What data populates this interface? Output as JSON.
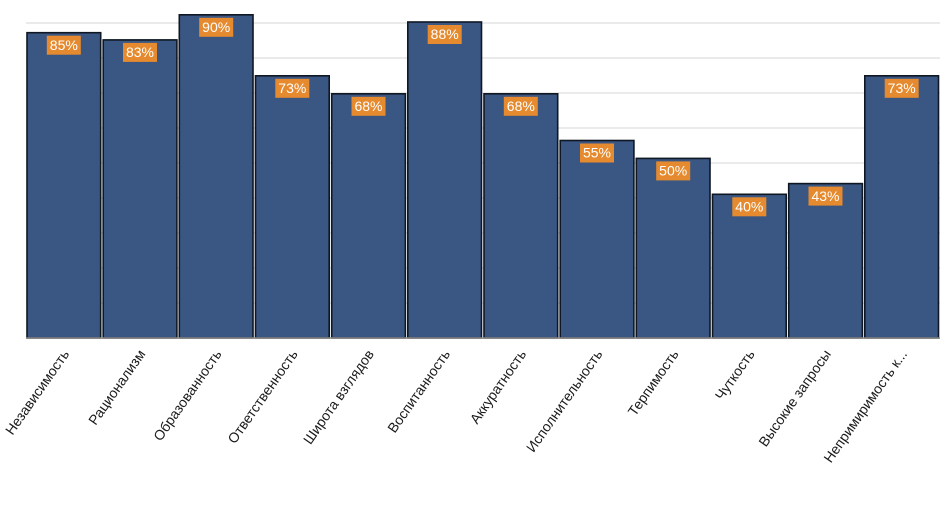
{
  "chart_data": {
    "type": "bar",
    "title": "",
    "xlabel": "",
    "ylabel": "",
    "ylim": [
      0,
      93
    ],
    "grid": true,
    "legend": "none",
    "bar_color": "#3a5683",
    "label_bg_color": "#e58a2e",
    "label_text_color": "#ffffff",
    "categories": [
      "Независимость",
      "Рационализм",
      "Образованность",
      "Ответственность",
      "Широта взглядов",
      "Воспитанность",
      "Аккуратность",
      "Исполнительность",
      "Терпимость",
      "Чуткость",
      "Высокие запросы",
      "Непримиримость к..."
    ],
    "values": [
      85,
      83,
      90,
      73,
      68,
      88,
      68,
      55,
      50,
      40,
      43,
      73
    ],
    "data_labels": [
      "85%",
      "83%",
      "90%",
      "73%",
      "68%",
      "88%",
      "68%",
      "55%",
      "50%",
      "40%",
      "43%",
      "73%"
    ]
  }
}
